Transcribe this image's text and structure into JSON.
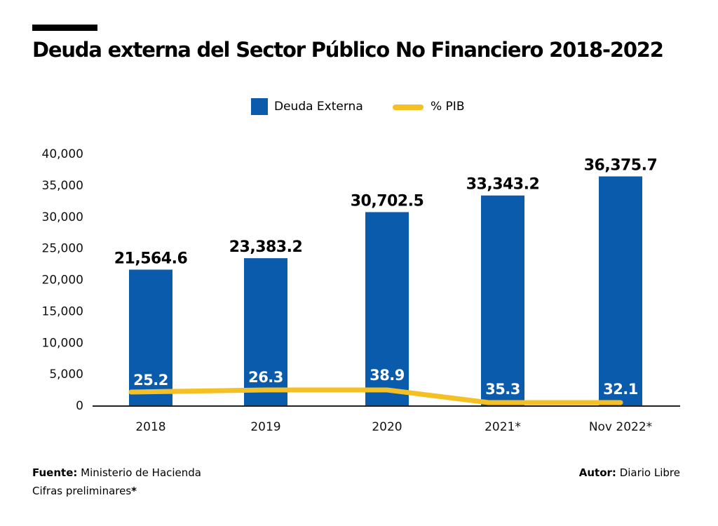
{
  "header": {
    "title": "Deuda externa del Sector Público No Financiero 2018-2022"
  },
  "legend": {
    "bars_label": "Deuda Externa",
    "line_label": "% PIB"
  },
  "footer": {
    "source_label": "Fuente:",
    "source_value": "Ministerio de Hacienda",
    "note_text": "Cifras preliminares",
    "note_mark": "*",
    "author_label": "Autor:",
    "author_value": "Diario Libre"
  },
  "colors": {
    "bar": "#0a5bab",
    "line": "#f5c023",
    "axis": "#222222"
  },
  "chart_data": {
    "type": "bar",
    "title": "Deuda externa del Sector Público No Financiero 2018-2022",
    "xlabel": "",
    "ylabel": "",
    "ylim": [
      0,
      40000
    ],
    "yticks": [
      0,
      5000,
      10000,
      15000,
      20000,
      25000,
      30000,
      35000,
      40000
    ],
    "ytick_labels": [
      "0",
      "5,000",
      "10,000",
      "15,000",
      "20,000",
      "25,000",
      "30,000",
      "35,000",
      "40,000"
    ],
    "categories": [
      "2018",
      "2019",
      "2020",
      "2021*",
      "Nov 2022*"
    ],
    "series": [
      {
        "name": "Deuda Externa",
        "type": "bar",
        "values": [
          21564.6,
          23383.2,
          30702.5,
          33343.2,
          36375.7
        ],
        "labels": [
          "21,564.6",
          "23,383.2",
          "30,702.5",
          "33,343.2",
          "36,375.7"
        ]
      },
      {
        "name": "% PIB",
        "type": "line",
        "values": [
          25.2,
          26.3,
          38.9,
          35.3,
          32.1
        ],
        "labels": [
          "25.2",
          "26.3",
          "38.9",
          "35.3",
          "32.1"
        ]
      }
    ],
    "grid": false,
    "legend_position": "top-center"
  }
}
